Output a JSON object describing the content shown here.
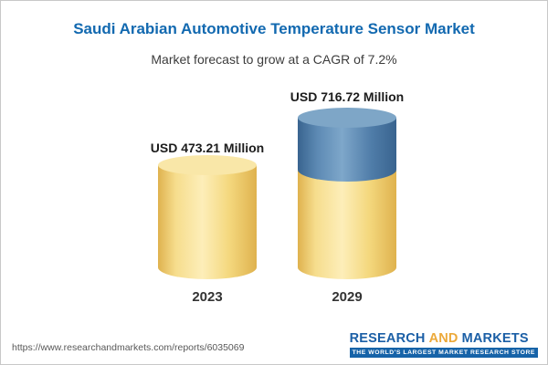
{
  "header": {
    "title": "Saudi Arabian Automotive Temperature Sensor Market",
    "subtitle": "Market forecast to grow at a CAGR of 7.2%"
  },
  "chart_data": {
    "type": "bar",
    "title": "Saudi Arabian Automotive Temperature Sensor Market",
    "subtitle": "Market forecast to grow at a CAGR of 7.2%",
    "categories": [
      "2023",
      "2029"
    ],
    "values": [
      473.21,
      716.72
    ],
    "unit": "USD Million",
    "value_labels": [
      "USD 473.21 Million",
      "USD 716.72 Million"
    ],
    "cagr_percent": 7.2,
    "grid": false,
    "legend_position": "none",
    "layout_hint": "cylinder bars; 2029 bar is gold for the 2023-equivalent base and blue for the growth increment above it",
    "colors": {
      "gold_bar": "#F5D87E",
      "blue_segment": "#4F7CA8",
      "title_blue": "#1269B0"
    }
  },
  "footer": {
    "url": "https://www.researchandmarkets.com/reports/6035069",
    "logo": {
      "word1": "RESEARCH",
      "word2": "AND",
      "word3": "MARKETS",
      "tagline": "THE WORLD'S LARGEST MARKET RESEARCH STORE"
    }
  }
}
